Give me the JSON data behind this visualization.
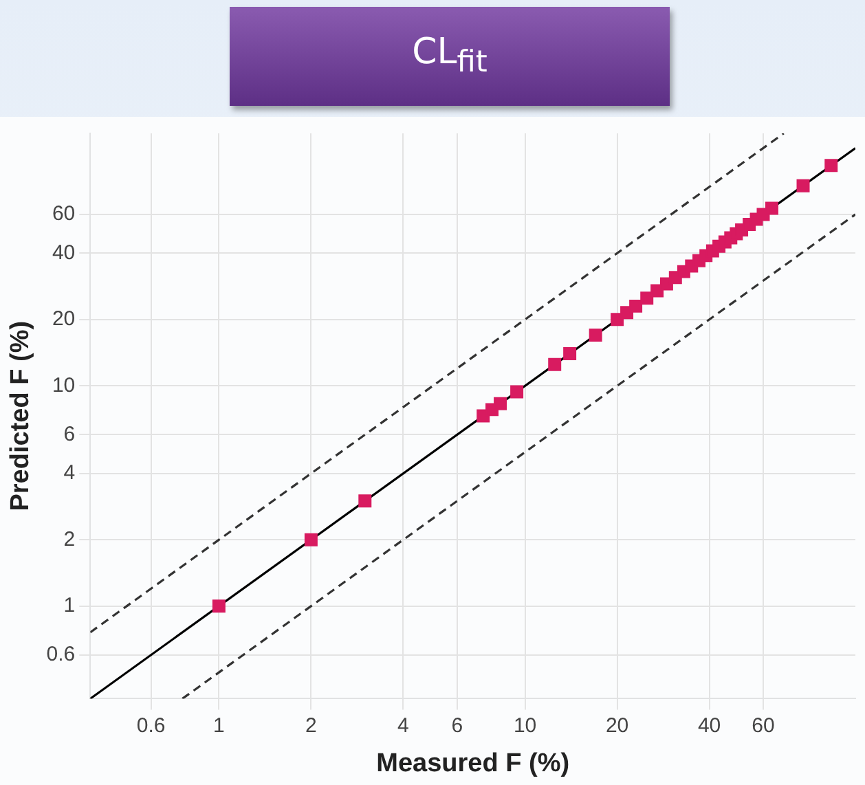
{
  "chart_data": {
    "type": "scatter",
    "title": "CL$_{fit}$",
    "xlabel": "Measured F (%)",
    "ylabel": "Predicted F (%)",
    "log": "xy",
    "xlim": [
      0.38,
      120
    ],
    "ylim": [
      0.38,
      140
    ],
    "xticks": [
      0.6,
      1,
      2,
      4,
      6,
      10,
      20,
      40,
      60
    ],
    "yticks": [
      0.6,
      1,
      2,
      4,
      6,
      10,
      20,
      40,
      60
    ],
    "grid": true,
    "legend": false,
    "series": [
      {
        "color": "#d81b60",
        "marker": "square",
        "x": [
          1,
          2,
          3,
          7.3,
          7.8,
          8.3,
          9.4,
          12.5,
          14,
          17,
          20,
          21.5,
          23,
          25,
          27,
          29,
          31,
          33,
          35,
          37,
          39,
          41,
          43,
          45,
          47,
          49,
          51,
          54,
          57,
          60,
          64,
          81,
          100
        ],
        "values": [
          1,
          2,
          3,
          7.3,
          7.8,
          8.3,
          9.4,
          12.5,
          14,
          17,
          20,
          21.5,
          23,
          25,
          27,
          29,
          31,
          33,
          35,
          37,
          39,
          41,
          43,
          45,
          47,
          49,
          51,
          54,
          57,
          60,
          64,
          81,
          100
        ]
      },
      {
        "type": "line",
        "color": "#000000",
        "line_style": "solid",
        "marker": "none",
        "x": [
          0.38,
          120
        ],
        "values": [
          0.38,
          120
        ]
      },
      {
        "type": "line",
        "color": "#333333",
        "line_style": "dashed",
        "marker": "none",
        "x": [
          0.38,
          70
        ],
        "values": [
          0.76,
          140
        ]
      },
      {
        "type": "line",
        "color": "#333333",
        "line_style": "dashed",
        "marker": "none",
        "x": [
          0.76,
          120
        ],
        "values": [
          0.38,
          60
        ]
      }
    ]
  }
}
